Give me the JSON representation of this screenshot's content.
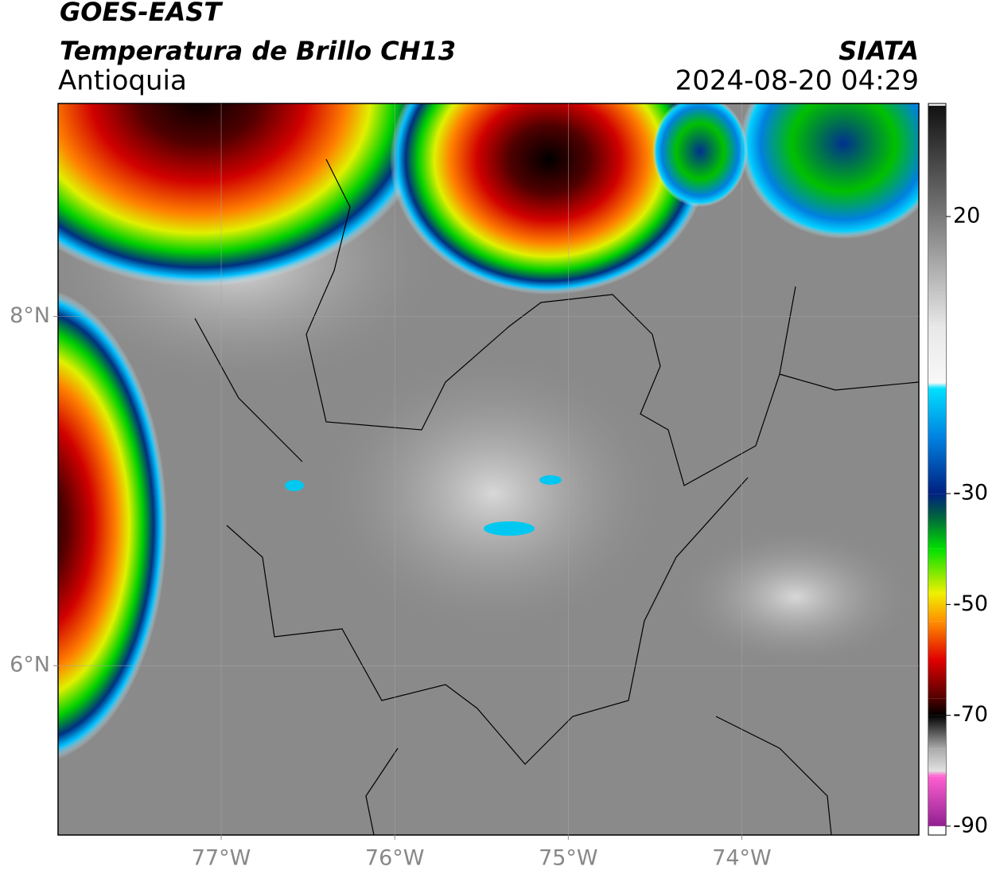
{
  "header": {
    "title": "GOES-EAST",
    "subtitle": "Temperatura de Brillo CH13",
    "region": "Antioquia",
    "source": "SIATA",
    "datetime": "2024-08-20 04:29"
  },
  "map": {
    "xlim": [
      -77.94,
      -72.98
    ],
    "ylim": [
      5.03,
      9.22
    ],
    "xticks": [
      {
        "value": -77,
        "label": "77°W"
      },
      {
        "value": -76,
        "label": "76°W"
      },
      {
        "value": -75,
        "label": "75°W"
      },
      {
        "value": -74,
        "label": "74°W"
      }
    ],
    "yticks": [
      {
        "value": 8,
        "label": "8°N"
      },
      {
        "value": 6,
        "label": "6°N"
      }
    ],
    "grid": true
  },
  "colorbar": {
    "range": [
      -91.6,
      40.4
    ],
    "ticks": [
      20,
      -30,
      -50,
      -70,
      -90
    ],
    "stops": [
      {
        "value": 40,
        "color": "#111111"
      },
      {
        "value": 20,
        "color": "#7a7a7a"
      },
      {
        "value": 0,
        "color": "#e8e8e8"
      },
      {
        "value": -10,
        "color": "#f8f8f8"
      },
      {
        "value": -11,
        "color": "#00e0ff"
      },
      {
        "value": -20,
        "color": "#0080e0"
      },
      {
        "value": -30,
        "color": "#002080"
      },
      {
        "value": -34,
        "color": "#006040"
      },
      {
        "value": -40,
        "color": "#00e000"
      },
      {
        "value": -48,
        "color": "#f0f000"
      },
      {
        "value": -53,
        "color": "#ff9000"
      },
      {
        "value": -60,
        "color": "#e00000"
      },
      {
        "value": -67,
        "color": "#500000"
      },
      {
        "value": -70,
        "color": "#000000"
      },
      {
        "value": -76,
        "color": "#aaaaaa"
      },
      {
        "value": -80,
        "color": "#e0e0e0"
      },
      {
        "value": -81,
        "color": "#ff60d0"
      },
      {
        "value": -90,
        "color": "#902090"
      }
    ]
  }
}
